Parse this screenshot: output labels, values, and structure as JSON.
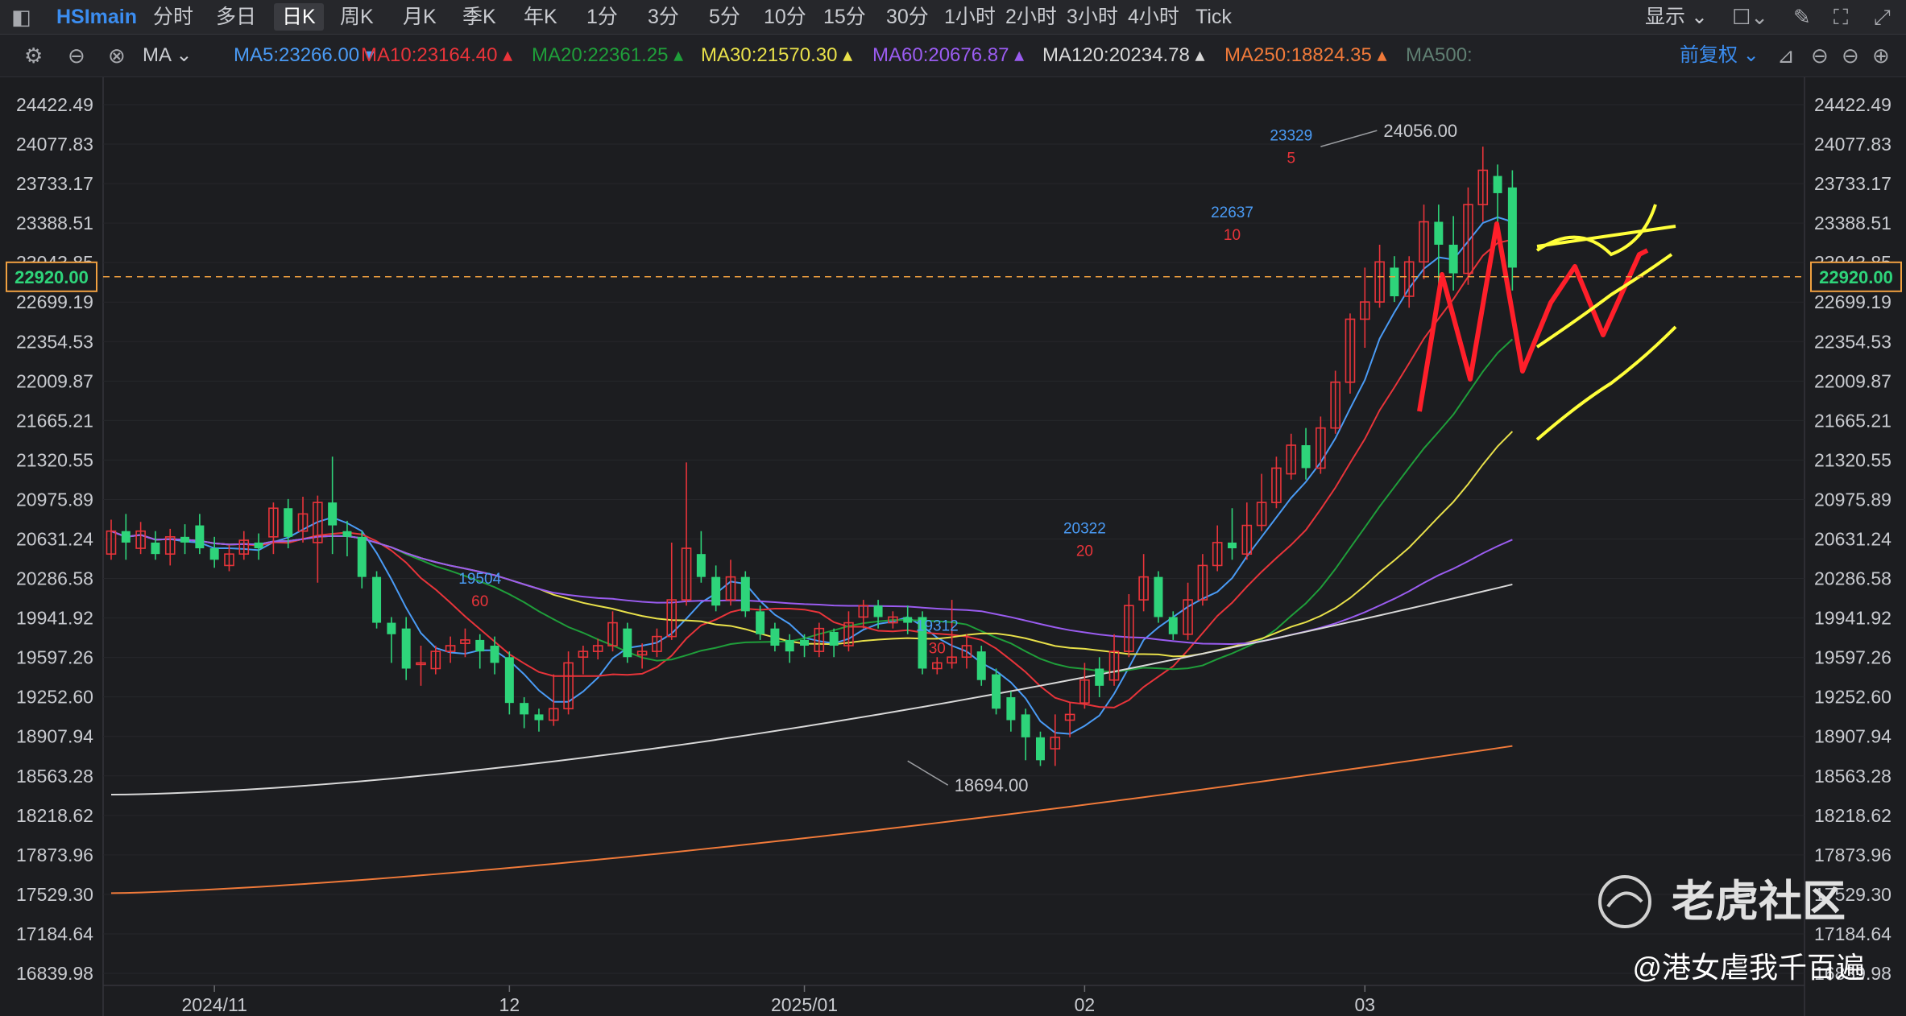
{
  "toolbar": {
    "symbol": "HSImain",
    "periods": [
      "分时",
      "多日",
      "日K",
      "周K",
      "月K",
      "季K",
      "年K",
      "1分",
      "3分",
      "5分",
      "10分",
      "15分",
      "30分",
      "1小时",
      "2小时",
      "3小时",
      "4小时",
      "Tick"
    ],
    "active": "日K",
    "display": "显示"
  },
  "ma_bar": {
    "type": "MA",
    "items": [
      {
        "label": "MA5:23266.00",
        "color": "#4a9bf5"
      },
      {
        "label": "MA10:23164.40",
        "color": "#e8343a"
      },
      {
        "label": "MA20:22361.25",
        "color": "#1f9e3a"
      },
      {
        "label": "MA30:21570.30",
        "color": "#e8e04a"
      },
      {
        "label": "MA60:20676.87",
        "color": "#9a5cf0"
      },
      {
        "label": "MA120:20234.78",
        "color": "#d8d8d8"
      },
      {
        "label": "MA250:18824.35",
        "color": "#f07a3a"
      },
      {
        "label": "MA500:",
        "color": "#5f7f72"
      }
    ],
    "adjust": "前复权"
  },
  "chart_data": {
    "type": "candlestick",
    "y_ticks": [
      "24422.49",
      "24077.83",
      "23733.17",
      "23388.51",
      "23043.85",
      "22699.19",
      "22354.53",
      "22009.87",
      "21665.21",
      "21320.55",
      "20975.89",
      "20631.24",
      "20286.58",
      "19941.92",
      "19597.26",
      "19252.60",
      "18907.94",
      "18563.28",
      "18218.62",
      "17873.96",
      "17529.30",
      "17184.64",
      "16839.98"
    ],
    "ylim": [
      16839.98,
      24422.49
    ],
    "x_labels": [
      {
        "label": "2024/11",
        "index": 7
      },
      {
        "label": "12",
        "index": 27
      },
      {
        "label": "2025/01",
        "index": 47
      },
      {
        "label": "02",
        "index": 66
      },
      {
        "label": "03",
        "index": 85
      }
    ],
    "current_price": "22920.00",
    "annotations": [
      {
        "label": "24056.00",
        "index": 82,
        "price": 24056.0
      },
      {
        "label": "18694.00",
        "index": 54,
        "price": 18694.0
      }
    ],
    "ma_markers": [
      {
        "value": "19504",
        "period": "60",
        "index": 25,
        "price": 20240
      },
      {
        "value": "19312",
        "period": "30",
        "index": 56,
        "price": 19830
      },
      {
        "value": "20322",
        "period": "20",
        "index": 66,
        "price": 20680
      },
      {
        "value": "22637",
        "period": "10",
        "index": 76,
        "price": 23440
      },
      {
        "value": "23329",
        "period": "5",
        "index": 80,
        "price": 24110
      }
    ],
    "candles": [
      [
        20500,
        20700,
        20450,
        20800
      ],
      [
        20700,
        20600,
        20450,
        20850
      ],
      [
        20550,
        20700,
        20500,
        20780
      ],
      [
        20600,
        20500,
        20450,
        20700
      ],
      [
        20500,
        20650,
        20400,
        20720
      ],
      [
        20650,
        20600,
        20500,
        20760
      ],
      [
        20750,
        20550,
        20500,
        20850
      ],
      [
        20550,
        20450,
        20380,
        20650
      ],
      [
        20400,
        20500,
        20350,
        20580
      ],
      [
        20500,
        20620,
        20450,
        20700
      ],
      [
        20600,
        20550,
        20450,
        20680
      ],
      [
        20650,
        20900,
        20500,
        20950
      ],
      [
        20900,
        20650,
        20550,
        20980
      ],
      [
        20700,
        20850,
        20600,
        21000
      ],
      [
        20600,
        20950,
        20250,
        21010
      ],
      [
        20950,
        20750,
        20500,
        21350
      ],
      [
        20700,
        20650,
        20480,
        20790
      ],
      [
        20650,
        20300,
        20200,
        20700
      ],
      [
        20300,
        19900,
        19850,
        20350
      ],
      [
        19900,
        19800,
        19550,
        19950
      ],
      [
        19850,
        19500,
        19400,
        19950
      ],
      [
        19550,
        19550,
        19350,
        19700
      ],
      [
        19500,
        19650,
        19450,
        19700
      ],
      [
        19650,
        19700,
        19550,
        19780
      ],
      [
        19720,
        19750,
        19600,
        19850
      ],
      [
        19750,
        19650,
        19500,
        19800
      ],
      [
        19700,
        19550,
        19450,
        19780
      ],
      [
        19600,
        19200,
        19100,
        19650
      ],
      [
        19200,
        19100,
        18980,
        19250
      ],
      [
        19100,
        19050,
        18950,
        19150
      ],
      [
        19050,
        19150,
        19000,
        19450
      ],
      [
        19150,
        19550,
        19100,
        19650
      ],
      [
        19600,
        19650,
        19450,
        19700
      ],
      [
        19650,
        19700,
        19580,
        19760
      ],
      [
        19700,
        19900,
        19650,
        20000
      ],
      [
        19850,
        19600,
        19550,
        19900
      ],
      [
        19620,
        19650,
        19500,
        19720
      ],
      [
        19650,
        19780,
        19600,
        19850
      ],
      [
        19780,
        20100,
        19750,
        20600
      ],
      [
        20100,
        20550,
        20050,
        21300
      ],
      [
        20500,
        20300,
        20250,
        20700
      ],
      [
        20300,
        20050,
        20000,
        20400
      ],
      [
        20100,
        20300,
        20050,
        20450
      ],
      [
        20300,
        20000,
        19950,
        20350
      ],
      [
        20000,
        19800,
        19750,
        20050
      ],
      [
        19850,
        19700,
        19650,
        19900
      ],
      [
        19750,
        19650,
        19550,
        19800
      ],
      [
        19750,
        19700,
        19600,
        19800
      ],
      [
        19650,
        19850,
        19600,
        19900
      ],
      [
        19820,
        19700,
        19600,
        19850
      ],
      [
        19700,
        19900,
        19650,
        20000
      ],
      [
        19950,
        20050,
        19850,
        20100
      ],
      [
        20050,
        19950,
        19850,
        20100
      ],
      [
        19900,
        19950,
        19850,
        20000
      ],
      [
        19950,
        19900,
        19800,
        20050
      ],
      [
        19950,
        19500,
        19450,
        20000
      ],
      [
        19500,
        19550,
        19450,
        19600
      ],
      [
        19550,
        19600,
        19500,
        20100
      ],
      [
        19600,
        19700,
        19500,
        19800
      ],
      [
        19650,
        19400,
        19350,
        19700
      ],
      [
        19450,
        19150,
        19100,
        19500
      ],
      [
        19250,
        19050,
        18950,
        19300
      ],
      [
        19100,
        18900,
        18700,
        19150
      ],
      [
        18900,
        18700,
        18650,
        18950
      ],
      [
        18800,
        18900,
        18650,
        19100
      ],
      [
        19050,
        19100,
        18900,
        19200
      ],
      [
        19200,
        19400,
        19150,
        19550
      ],
      [
        19500,
        19350,
        19250,
        19600
      ],
      [
        19400,
        19650,
        19350,
        19800
      ],
      [
        19650,
        20050,
        19600,
        20150
      ],
      [
        20100,
        20300,
        20000,
        20500
      ],
      [
        20300,
        19950,
        19900,
        20350
      ],
      [
        19950,
        19800,
        19750,
        20000
      ],
      [
        19800,
        20100,
        19750,
        20250
      ],
      [
        20100,
        20400,
        20050,
        20500
      ],
      [
        20400,
        20600,
        20350,
        20750
      ],
      [
        20600,
        20550,
        20450,
        20900
      ],
      [
        20500,
        20750,
        20450,
        20950
      ],
      [
        20750,
        20950,
        20700,
        21200
      ],
      [
        20950,
        21250,
        20900,
        21350
      ],
      [
        21200,
        21450,
        21150,
        21550
      ],
      [
        21450,
        21250,
        21150,
        21600
      ],
      [
        21250,
        21600,
        21200,
        21700
      ],
      [
        21600,
        22000,
        21550,
        22100
      ],
      [
        22000,
        22550,
        21900,
        22600
      ],
      [
        22550,
        22700,
        22300,
        23000
      ],
      [
        22700,
        23050,
        22650,
        23200
      ],
      [
        23000,
        22750,
        22700,
        23100
      ],
      [
        22750,
        23050,
        22650,
        23100
      ],
      [
        23050,
        23400,
        22900,
        23550
      ],
      [
        23400,
        23200,
        22800,
        23550
      ],
      [
        23200,
        22950,
        22800,
        23450
      ],
      [
        22950,
        23550,
        22850,
        23700
      ],
      [
        23550,
        23850,
        23400,
        24056
      ],
      [
        23800,
        23650,
        23300,
        23900
      ],
      [
        23700,
        23000,
        22800,
        23850
      ]
    ]
  },
  "watermark": {
    "brand": "老虎社区",
    "author": "@港女虐我千百遍"
  }
}
